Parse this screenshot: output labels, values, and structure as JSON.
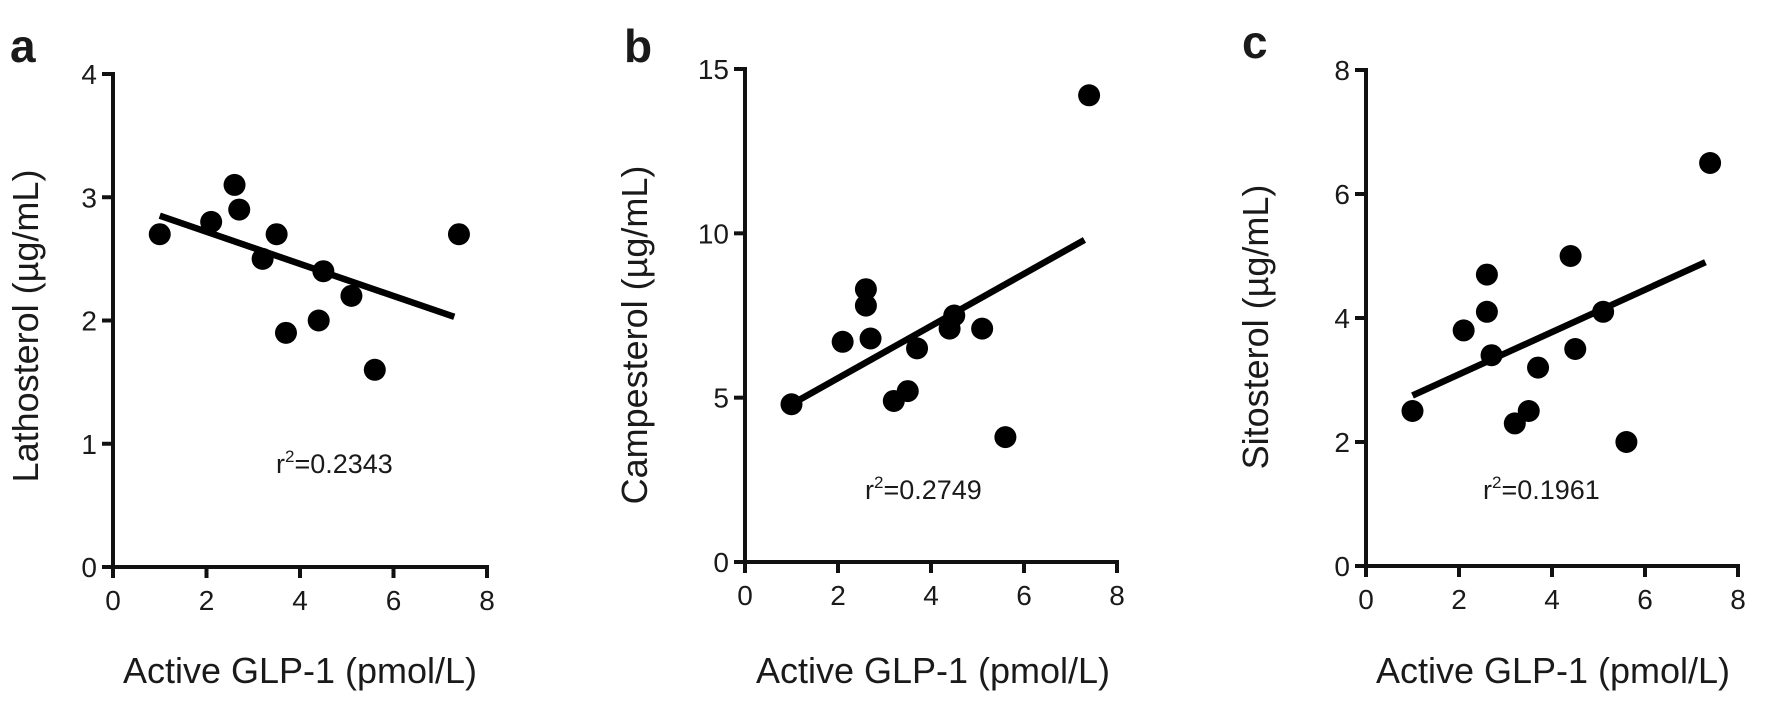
{
  "chart_data": [
    {
      "type": "scatter",
      "panel": "a",
      "xlabel": "Active GLP-1 (pmol/L)",
      "ylabel": "Lathosterol (µg/mL)",
      "xlim": [
        0,
        8
      ],
      "ylim": [
        0,
        4
      ],
      "xticks": [
        0,
        2,
        4,
        6,
        8
      ],
      "yticks": [
        0,
        1,
        2,
        3,
        4
      ],
      "grid": false,
      "x": [
        1.0,
        2.1,
        2.6,
        2.7,
        3.2,
        3.5,
        3.7,
        4.4,
        4.5,
        5.1,
        5.6,
        7.4
      ],
      "y": [
        2.7,
        2.8,
        3.1,
        2.9,
        2.5,
        2.7,
        1.9,
        2.0,
        2.4,
        2.2,
        1.6,
        2.7
      ],
      "fit_line": {
        "x": [
          1.0,
          7.3
        ],
        "y": [
          2.85,
          2.03
        ]
      },
      "annotation": {
        "base": "r",
        "sup": "2",
        "value": "=0.2343"
      }
    },
    {
      "type": "scatter",
      "panel": "b",
      "xlabel": "Active GLP-1 (pmol/L)",
      "ylabel": "Campesterol (µg/mL)",
      "xlim": [
        0,
        8
      ],
      "ylim": [
        0,
        15
      ],
      "xticks": [
        0,
        2,
        4,
        6,
        8
      ],
      "yticks": [
        0,
        5,
        10,
        15
      ],
      "grid": false,
      "x": [
        1.0,
        2.1,
        2.6,
        2.6,
        2.7,
        3.2,
        3.5,
        3.7,
        4.4,
        4.5,
        5.1,
        5.6,
        7.4
      ],
      "y": [
        4.8,
        6.7,
        8.3,
        7.8,
        6.8,
        4.9,
        5.2,
        6.5,
        7.1,
        7.5,
        7.1,
        3.8,
        14.2
      ],
      "fit_line": {
        "x": [
          1.0,
          7.3
        ],
        "y": [
          4.8,
          9.8
        ]
      },
      "annotation": {
        "base": "r",
        "sup": "2",
        "value": "=0.2749"
      }
    },
    {
      "type": "scatter",
      "panel": "c",
      "xlabel": "Active GLP-1 (pmol/L)",
      "ylabel": "Sitosterol (µg/mL)",
      "xlim": [
        0,
        8
      ],
      "ylim": [
        0,
        8
      ],
      "xticks": [
        0,
        2,
        4,
        6,
        8
      ],
      "yticks": [
        0,
        2,
        4,
        6,
        8
      ],
      "grid": false,
      "x": [
        1.0,
        2.1,
        2.6,
        2.6,
        2.7,
        3.2,
        3.5,
        3.7,
        4.4,
        4.5,
        5.1,
        5.6,
        7.4
      ],
      "y": [
        2.5,
        3.8,
        4.7,
        4.1,
        3.4,
        2.3,
        2.5,
        3.2,
        5.0,
        3.5,
        4.1,
        2.0,
        6.5
      ],
      "fit_line": {
        "x": [
          1.0,
          7.3
        ],
        "y": [
          2.75,
          4.9
        ]
      },
      "annotation": {
        "base": "r",
        "sup": "2",
        "value": "=0.1961"
      }
    }
  ]
}
